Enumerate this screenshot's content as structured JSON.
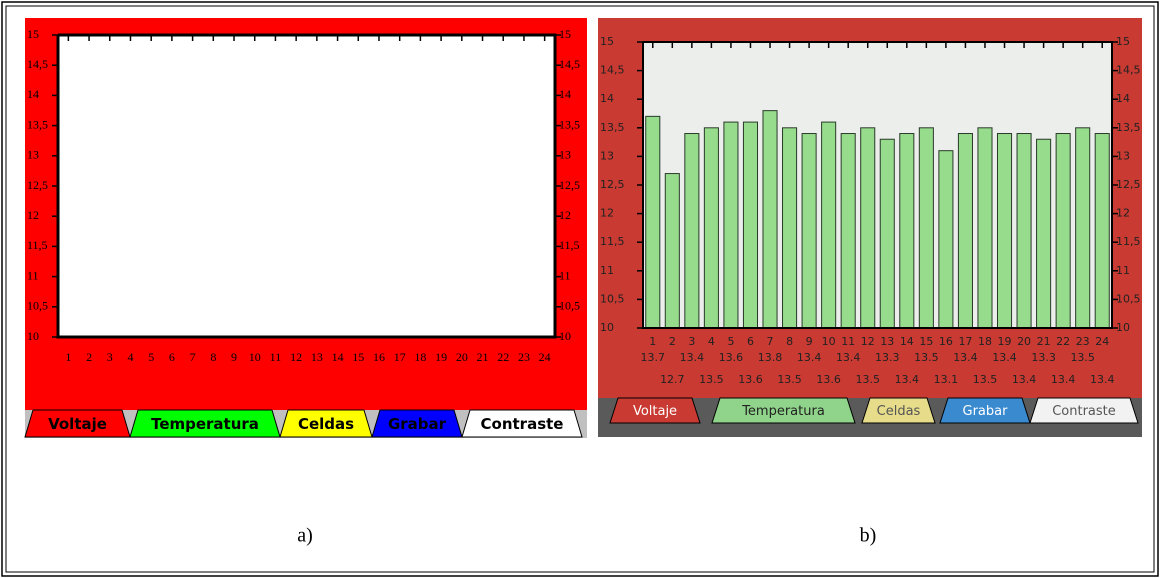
{
  "chart_data": [
    {
      "type": "bar",
      "categories": [
        "1",
        "2",
        "3",
        "4",
        "5",
        "6",
        "7",
        "8",
        "9",
        "10",
        "11",
        "12",
        "13",
        "14",
        "15",
        "16",
        "17",
        "18",
        "19",
        "20",
        "21",
        "22",
        "23",
        "24"
      ],
      "ylim": [
        10,
        15
      ],
      "yticks": [
        10,
        {
          "value": 10.5,
          "label": "10,5"
        },
        11,
        {
          "value": 11.5,
          "label": "11,5"
        },
        12,
        {
          "value": 12.5,
          "label": "12,5"
        },
        13,
        {
          "value": 13.5,
          "label": "13,5"
        },
        14,
        {
          "value": 14.5,
          "label": "14,5"
        },
        15
      ],
      "tabs": [
        "Voltaje",
        "Temperatura",
        "Celdas",
        "Grabar",
        "Contraste"
      ],
      "caption": "a)"
    },
    {
      "type": "bar",
      "categories": [
        "1",
        "2",
        "3",
        "4",
        "5",
        "6",
        "7",
        "8",
        "9",
        "10",
        "11",
        "12",
        "13",
        "14",
        "15",
        "16",
        "17",
        "18",
        "19",
        "20",
        "21",
        "22",
        "23",
        "24"
      ],
      "values": [
        13.7,
        12.7,
        13.4,
        13.5,
        13.6,
        13.6,
        13.8,
        13.5,
        13.4,
        13.6,
        13.4,
        13.5,
        13.3,
        13.4,
        13.5,
        13.1,
        13.4,
        13.5,
        13.4,
        13.4,
        13.3,
        13.4,
        13.5,
        13.4
      ],
      "ylim": [
        10,
        15
      ],
      "yticks": [
        10,
        {
          "value": 10.5,
          "label": "10,5"
        },
        11,
        {
          "value": 11.5,
          "label": "11,5"
        },
        12,
        {
          "value": 12.5,
          "label": "12,5"
        },
        13,
        {
          "value": 13.5,
          "label": "13,5"
        },
        14,
        {
          "value": 14.5,
          "label": "14,5"
        },
        15
      ],
      "tabs": [
        "Voltaje",
        "Temperatura",
        "Celdas",
        "Grabar",
        "Contraste"
      ],
      "caption": "b)"
    }
  ]
}
